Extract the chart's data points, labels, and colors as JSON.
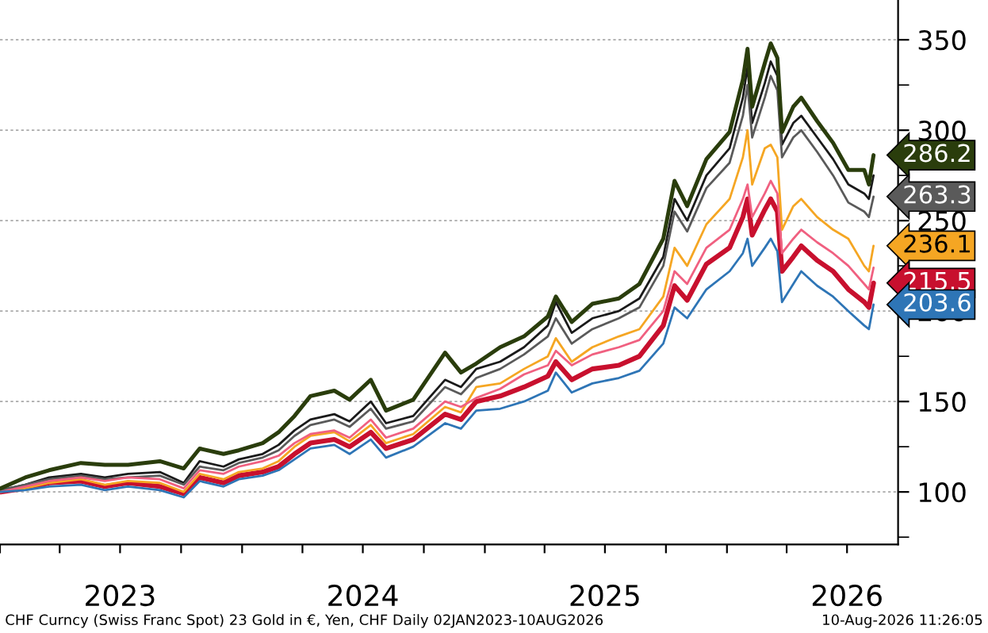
{
  "chart_data": {
    "type": "line",
    "x": [
      "2023-01-02",
      "2023-02-08",
      "2023-03-16",
      "2023-05-03",
      "2023-06-08",
      "2023-07-13",
      "2023-08-30",
      "2023-10-05",
      "2023-10-29",
      "2023-12-04",
      "2023-12-27",
      "2024-02-01",
      "2024-02-25",
      "2024-03-20",
      "2024-04-13",
      "2024-05-19",
      "2024-06-11",
      "2024-07-13",
      "2024-08-05",
      "2024-09-15",
      "2024-11-02",
      "2024-11-26",
      "2024-12-19",
      "2025-01-24",
      "2025-03-01",
      "2025-04-06",
      "2025-04-18",
      "2025-05-12",
      "2025-06-12",
      "2025-07-22",
      "2025-08-22",
      "2025-09-27",
      "2025-10-14",
      "2025-11-02",
      "2025-12-01",
      "2026-01-05",
      "2026-01-25",
      "2026-02-01",
      "2026-02-08",
      "2026-02-27",
      "2026-03-08",
      "2026-03-18",
      "2026-03-25",
      "2026-04-11",
      "2026-04-23",
      "2026-05-17",
      "2026-06-10",
      "2026-07-03",
      "2026-07-27",
      "2026-08-03",
      "2026-08-10"
    ],
    "series": [
      {
        "color": "#2a3d0c",
        "values": [
          102,
          108,
          112,
          116,
          115,
          115,
          117,
          113,
          124,
          121,
          123,
          127,
          133,
          142,
          153,
          156,
          151,
          162,
          145,
          151,
          177,
          166,
          171,
          180,
          186,
          197,
          208,
          194,
          204,
          207,
          215,
          240,
          272,
          258,
          284,
          299,
          328,
          345,
          313,
          337,
          348,
          340,
          299,
          313,
          318,
          305,
          293,
          278,
          278,
          270,
          286.2
        ],
        "value_labels": [
          null,
          null,
          null,
          null,
          null,
          null,
          null,
          null,
          null,
          null,
          null,
          null,
          null,
          null,
          null,
          null,
          null,
          null,
          null,
          null,
          null,
          null,
          null,
          null,
          null,
          null,
          null,
          null,
          null,
          null,
          null,
          null,
          null,
          null,
          null,
          null,
          null,
          null,
          null,
          null,
          null,
          null,
          null,
          null,
          null,
          null,
          null,
          null,
          null,
          null,
          "286.2"
        ]
      },
      {
        "color": "#1a1a1a",
        "values": [
          101,
          104,
          108,
          110,
          108,
          110,
          111,
          105,
          117,
          114,
          118,
          121,
          126,
          134,
          140,
          143,
          139,
          150,
          138,
          142,
          162,
          158,
          168,
          172,
          180,
          192,
          205,
          188,
          196,
          200,
          207,
          230,
          262,
          250,
          275,
          290,
          318,
          335,
          304,
          326,
          338,
          330,
          292,
          304,
          308,
          296,
          284,
          270,
          265,
          262,
          275
        ]
      },
      {
        "color": "#5a5a5a",
        "values": [
          101,
          104,
          107,
          109,
          107,
          108,
          109,
          104,
          114,
          112,
          116,
          119,
          123,
          131,
          137,
          140,
          136,
          146,
          135,
          139,
          158,
          154,
          163,
          168,
          176,
          186,
          196,
          182,
          190,
          196,
          202,
          225,
          255,
          244,
          268,
          282,
          308,
          325,
          296,
          318,
          330,
          322,
          285,
          296,
          300,
          288,
          275,
          260,
          255,
          252,
          263.3
        ],
        "value_labels": [
          null,
          null,
          null,
          null,
          null,
          null,
          null,
          null,
          null,
          null,
          null,
          null,
          null,
          null,
          null,
          null,
          null,
          null,
          null,
          null,
          null,
          null,
          null,
          null,
          null,
          null,
          null,
          null,
          null,
          null,
          null,
          null,
          null,
          null,
          null,
          null,
          null,
          null,
          null,
          null,
          null,
          null,
          null,
          null,
          null,
          null,
          null,
          null,
          null,
          null,
          "263.3"
        ]
      },
      {
        "color": "#f5a623",
        "values": [
          100,
          102,
          105,
          107,
          104,
          106,
          105,
          100,
          110,
          107,
          111,
          113,
          117,
          125,
          131,
          133,
          128,
          137,
          127,
          132,
          147,
          144,
          158,
          160,
          168,
          175,
          185,
          172,
          180,
          186,
          190,
          208,
          235,
          225,
          248,
          262,
          285,
          300,
          270,
          290,
          292,
          285,
          245,
          258,
          262,
          252,
          245,
          240,
          225,
          222,
          236.1
        ],
        "value_labels": [
          null,
          null,
          null,
          null,
          null,
          null,
          null,
          null,
          null,
          null,
          null,
          null,
          null,
          null,
          null,
          null,
          null,
          null,
          null,
          null,
          null,
          null,
          null,
          null,
          null,
          null,
          null,
          null,
          null,
          null,
          null,
          null,
          null,
          null,
          null,
          null,
          null,
          null,
          null,
          null,
          null,
          null,
          null,
          null,
          null,
          null,
          null,
          null,
          null,
          null,
          "236.1"
        ]
      },
      {
        "color": "#f06080",
        "values": [
          100,
          103,
          106,
          108,
          106,
          108,
          107,
          102,
          112,
          110,
          114,
          117,
          120,
          127,
          132,
          134,
          130,
          140,
          130,
          135,
          150,
          147,
          152,
          157,
          165,
          170,
          178,
          170,
          176,
          180,
          184,
          200,
          222,
          215,
          235,
          245,
          262,
          270,
          252,
          265,
          272,
          265,
          232,
          240,
          245,
          238,
          232,
          225,
          215,
          212,
          224
        ]
      },
      {
        "color": "#c8102e",
        "values": [
          100,
          102,
          105,
          106,
          103,
          105,
          103,
          99,
          108,
          105,
          109,
          111,
          114,
          121,
          127,
          129,
          125,
          133,
          124,
          129,
          143,
          140,
          150,
          153,
          158,
          164,
          172,
          162,
          168,
          170,
          175,
          192,
          214,
          206,
          226,
          235,
          252,
          262,
          242,
          256,
          262,
          255,
          222,
          230,
          236,
          228,
          222,
          212,
          205,
          202,
          215.5
        ],
        "value_labels": [
          null,
          null,
          null,
          null,
          null,
          null,
          null,
          null,
          null,
          null,
          null,
          null,
          null,
          null,
          null,
          null,
          null,
          null,
          null,
          null,
          null,
          null,
          null,
          null,
          null,
          null,
          null,
          null,
          null,
          null,
          null,
          null,
          null,
          null,
          null,
          null,
          null,
          null,
          null,
          null,
          null,
          null,
          null,
          null,
          null,
          null,
          null,
          null,
          null,
          null,
          "215.5"
        ]
      },
      {
        "color": "#2e75b6",
        "values": [
          100,
          101,
          103,
          104,
          101,
          103,
          101,
          97,
          106,
          103,
          107,
          109,
          112,
          118,
          124,
          126,
          121,
          129,
          119,
          125,
          138,
          135,
          145,
          146,
          150,
          156,
          166,
          155,
          160,
          163,
          167,
          182,
          202,
          196,
          212,
          222,
          232,
          240,
          225,
          235,
          240,
          233,
          205,
          215,
          222,
          214,
          208,
          200,
          192,
          190,
          203.6
        ],
        "value_labels": [
          null,
          null,
          null,
          null,
          null,
          null,
          null,
          null,
          null,
          null,
          null,
          null,
          null,
          null,
          null,
          null,
          null,
          null,
          null,
          null,
          null,
          null,
          null,
          null,
          null,
          null,
          null,
          null,
          null,
          null,
          null,
          null,
          null,
          null,
          null,
          null,
          null,
          null,
          null,
          null,
          null,
          null,
          null,
          null,
          null,
          null,
          null,
          null,
          null,
          null,
          "203.6"
        ]
      }
    ],
    "xlim": [
      "2023-01-01",
      "2026-09-16"
    ],
    "xticks": [
      {
        "value": "2023-01-01",
        "label": null
      },
      {
        "value": "2023-04-01",
        "label": null
      },
      {
        "value": "2023-07-01",
        "label": "2023"
      },
      {
        "value": "2023-10-01",
        "label": null
      },
      {
        "value": "2024-01-01",
        "label": null
      },
      {
        "value": "2024-04-01",
        "label": null
      },
      {
        "value": "2024-07-01",
        "label": "2024"
      },
      {
        "value": "2024-10-01",
        "label": null
      },
      {
        "value": "2025-01-01",
        "label": null
      },
      {
        "value": "2025-04-01",
        "label": null
      },
      {
        "value": "2025-07-01",
        "label": "2025"
      },
      {
        "value": "2025-10-01",
        "label": null
      },
      {
        "value": "2026-01-01",
        "label": null
      },
      {
        "value": "2026-04-01",
        "label": null
      },
      {
        "value": "2026-07-01",
        "label": "2026"
      }
    ],
    "ylim": [
      71,
      372
    ],
    "yticks": [
      {
        "value": 75,
        "label": null
      },
      100,
      {
        "value": 125,
        "label": null
      },
      150,
      {
        "value": 175,
        "label": null
      },
      200,
      {
        "value": 225,
        "label": null
      },
      250,
      {
        "value": 275,
        "label": null
      },
      300,
      {
        "value": 325,
        "label": null
      },
      350
    ],
    "grid": "y",
    "legend": false,
    "annotations": [
      "CHF Curncy (Swiss Franc Spot) 23 Gold in €, Yen, CHF Daily 02JAN2023-10AUG2026",
      "10-Aug-2026 11:26:05"
    ]
  }
}
